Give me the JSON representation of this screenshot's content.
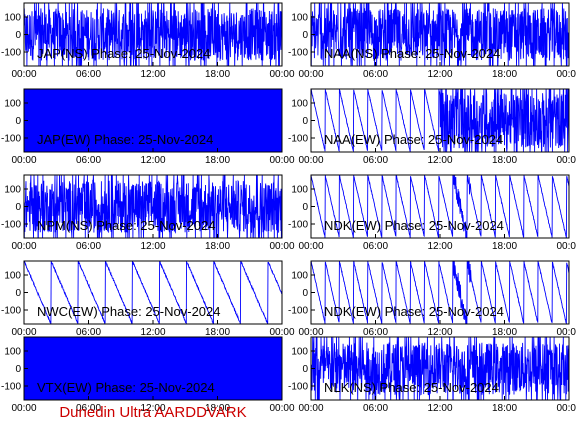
{
  "chart_data": {
    "type": "line",
    "layout": "5 rows x 2 columns",
    "line_color": "#0000ff",
    "x_ticks": [
      "00:00",
      "06:00",
      "12:00",
      "18:00",
      "00:00"
    ],
    "y_ticks": [
      100,
      0,
      -100
    ],
    "ylim": [
      -180,
      180
    ],
    "grid": false,
    "panels": [
      {
        "title": "JAP(NS) Phase: 25-Nov-2024",
        "style": "dense"
      },
      {
        "title": "NAA(NS) Phase: 25-Nov-2024",
        "style": "dense"
      },
      {
        "title": "JAP(EW) Phase: 25-Nov-2024",
        "style": "saturated"
      },
      {
        "title": "NAA(EW) Phase: 25-Nov-2024",
        "style": "sawtooth_then_dense"
      },
      {
        "title": "NPM(NS) Phase: 25-Nov-2024",
        "style": "dense"
      },
      {
        "title": "NDK(EW) Phase: 25-Nov-2024",
        "style": "sawtooth"
      },
      {
        "title": "NWC(EW) Phase: 25-Nov-2024",
        "style": "sawtooth_sparse"
      },
      {
        "title": "NDK(EW) Phase: 25-Nov-2024",
        "style": "sawtooth"
      },
      {
        "title": "VTX(EW) Phase: 25-Nov-2024",
        "style": "saturated"
      },
      {
        "title": "NLK(NS) Phase: 25-Nov-2024",
        "style": "dense"
      }
    ]
  },
  "footer": {
    "text": "Dunedin Ultra AARDDVARK"
  }
}
